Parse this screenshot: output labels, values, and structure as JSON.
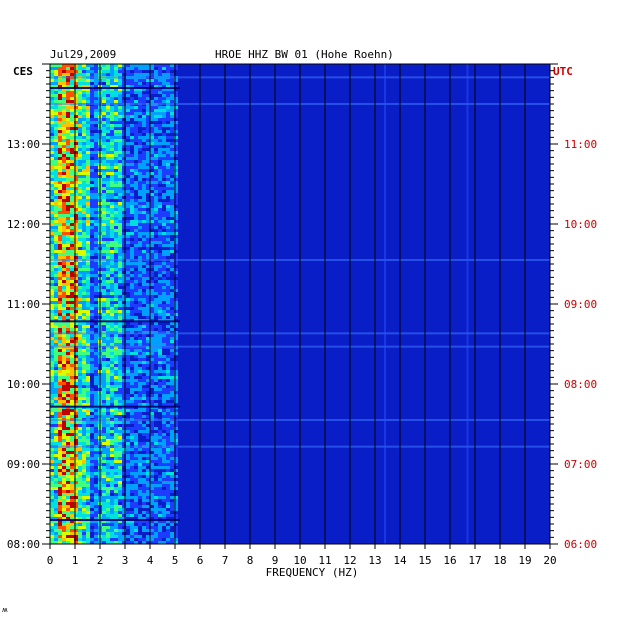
{
  "header": {
    "date": "Jul29,2009",
    "station": "HROE HHZ BW 01 (Hohe Roehn)",
    "left_zone": "CES",
    "right_zone": "UTC"
  },
  "footer_mark": "ʍ",
  "chart_data": {
    "type": "heatmap",
    "title": "HROE HHZ BW 01 (Hohe Roehn)",
    "xlabel": "FREQUENCY (HZ)",
    "xlim": [
      0,
      20
    ],
    "x_ticks": [
      0,
      1,
      2,
      3,
      4,
      5,
      6,
      7,
      8,
      9,
      10,
      11,
      12,
      13,
      14,
      15,
      16,
      17,
      18,
      19,
      20
    ],
    "left_axis": {
      "zone": "CES",
      "range_hours": [
        8,
        14
      ],
      "tick_labels": [
        "08:00",
        "09:00",
        "10:00",
        "11:00",
        "12:00",
        "13:00"
      ]
    },
    "right_axis": {
      "zone": "UTC",
      "range_hours": [
        6,
        12
      ],
      "tick_labels": [
        "06:00",
        "07:00",
        "08:00",
        "09:00",
        "10:00",
        "11:00"
      ],
      "color": "#cc0000"
    },
    "grid": true,
    "colormap": [
      "#00008b",
      "#0000cd",
      "#1e3cff",
      "#00a0ff",
      "#00e0e0",
      "#40ff80",
      "#d8ff00",
      "#ffc000",
      "#ff5000",
      "#c00000"
    ],
    "background_level": "low",
    "strong_band_hz": [
      0.2,
      1.0
    ],
    "secondary_band_hz": [
      1.8,
      2.8
    ],
    "horizontal_lines_ces": [
      "13:50",
      "13:42",
      "13:30",
      "11:33",
      "10:47",
      "10:38",
      "10:28",
      "09:43",
      "09:33",
      "09:13",
      "08:18"
    ],
    "vertical_lines_hz": [
      13.4,
      16.7
    ]
  }
}
